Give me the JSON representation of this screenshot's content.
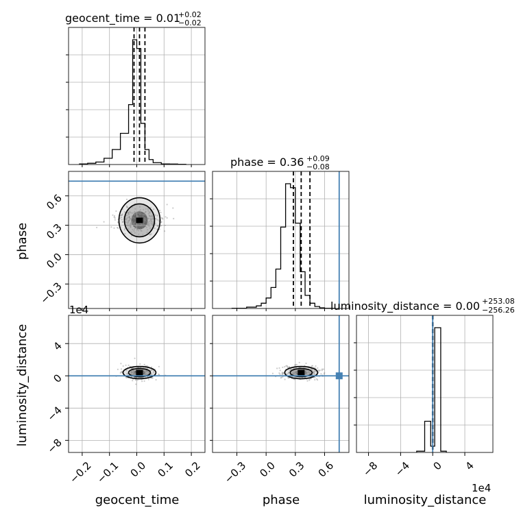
{
  "chart_data": {
    "type": "corner",
    "parameters": [
      "geocent_time",
      "phase",
      "luminosity_distance"
    ],
    "titles": [
      {
        "text": "geocent_time = 0.01",
        "upper": "+0.02",
        "lower": "−0.02"
      },
      {
        "text": "phase = 0.36",
        "upper": "+0.09",
        "lower": "−0.08"
      },
      {
        "text": "luminosity_distance = 0.00",
        "upper": "+253.08",
        "lower": "−256.26"
      }
    ],
    "axis_labels": {
      "x": [
        "geocent_time",
        "phase",
        "luminosity_distance"
      ],
      "y": [
        "phase",
        "luminosity_distance"
      ]
    },
    "ranges": [
      [
        -0.25,
        0.25
      ],
      [
        -0.55,
        0.85
      ],
      [
        -95000,
        75000
      ]
    ],
    "ticks": {
      "geocent_time": {
        "values": [
          -0.2,
          -0.1,
          0.0,
          0.1,
          0.2
        ],
        "labels": [
          "−0.2",
          "−0.1",
          "0.0",
          "0.1",
          "0.2"
        ]
      },
      "phase": {
        "values": [
          -0.3,
          0.0,
          0.3,
          0.6
        ],
        "labels": [
          "−0.3",
          "0.0",
          "0.3",
          "0.6"
        ]
      },
      "luminosity_distance": {
        "values": [
          -80000,
          -40000,
          0,
          40000
        ],
        "labels": [
          "−8",
          "−4",
          "0",
          "4"
        ],
        "multiplier": "1e4"
      }
    },
    "truths": [
      null,
      0.75,
      0
    ],
    "truth_color": "#4682b4",
    "quantiles": [
      [
        -0.01,
        0.01,
        0.03
      ],
      [
        0.28,
        0.36,
        0.45
      ],
      [
        -256.26,
        0.0,
        253.08
      ]
    ],
    "histograms": [
      {
        "edges": [
          -0.21,
          -0.18,
          -0.15,
          -0.12,
          -0.09,
          -0.06,
          -0.03,
          -0.015,
          0.0,
          0.015,
          0.03,
          0.045,
          0.06,
          0.09,
          0.12,
          0.15,
          0.18
        ],
        "values": [
          0.005,
          0.01,
          0.02,
          0.05,
          0.12,
          0.25,
          0.48,
          1.0,
          0.93,
          0.33,
          0.12,
          0.04,
          0.015,
          0.005,
          0.004,
          0.002
        ]
      },
      {
        "edges": [
          -0.35,
          -0.2,
          -0.1,
          -0.05,
          0.0,
          0.05,
          0.1,
          0.15,
          0.2,
          0.25,
          0.3,
          0.35,
          0.4,
          0.45,
          0.5,
          0.55,
          0.6,
          0.7
        ],
        "values": [
          0.002,
          0.01,
          0.02,
          0.04,
          0.08,
          0.16,
          0.3,
          0.62,
          0.95,
          0.92,
          0.65,
          0.28,
          0.1,
          0.04,
          0.015,
          0.005,
          0.002
        ]
      },
      {
        "edges": [
          -20000,
          -10000,
          -2500,
          2500,
          10000,
          17000
        ],
        "values": [
          0.01,
          0.25,
          0.05,
          1.0,
          0.01
        ]
      }
    ],
    "scatter_2d": [
      {
        "x_param": "geocent_time",
        "y_param": "phase",
        "peak": [
          0.01,
          0.35
        ],
        "spread": [
          0.045,
          0.18
        ]
      },
      {
        "x_param": "geocent_time",
        "y_param": "luminosity_distance",
        "peak": [
          0.01,
          4000
        ],
        "spread": [
          0.03,
          8000
        ]
      },
      {
        "x_param": "phase",
        "y_param": "luminosity_distance",
        "peak": [
          0.36,
          4000
        ],
        "spread": [
          0.1,
          8000
        ]
      }
    ],
    "grid": true
  }
}
